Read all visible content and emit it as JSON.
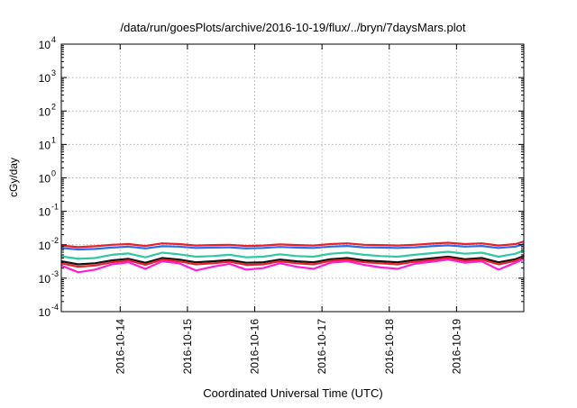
{
  "chart_data": {
    "type": "line",
    "title": "/data/run/goesPlots/archive/2016-10-19/flux/../bryn/7daysMars.plot",
    "xlabel": "Coordinated Universal Time (UTC)",
    "ylabel": "cGy/day",
    "yscale": "log",
    "grid": true,
    "legend": "none",
    "x_range": [
      "2016-10-13 03:00",
      "2016-10-20 00:00"
    ],
    "x_ticks": [
      "2016-10-14",
      "2016-10-15",
      "2016-10-16",
      "2016-10-17",
      "2016-10-18",
      "2016-10-19"
    ],
    "ylim": [
      0.0001,
      10000
    ],
    "y_ticks": [
      {
        "base": "10",
        "exp": "-4",
        "value": 0.0001
      },
      {
        "base": "10",
        "exp": "-3",
        "value": 0.001
      },
      {
        "base": "10",
        "exp": "-2",
        "value": 0.01
      },
      {
        "base": "10",
        "exp": "-1",
        "value": 0.1
      },
      {
        "base": "10",
        "exp": "0",
        "value": 1
      },
      {
        "base": "10",
        "exp": "1",
        "value": 10
      },
      {
        "base": "10",
        "exp": "2",
        "value": 100
      },
      {
        "base": "10",
        "exp": "3",
        "value": 1000
      },
      {
        "base": "10",
        "exp": "4",
        "value": 10000
      }
    ],
    "x": [
      "2016-10-13 03:00",
      "2016-10-13 09:00",
      "2016-10-13 15:00",
      "2016-10-13 21:00",
      "2016-10-14 03:00",
      "2016-10-14 09:00",
      "2016-10-14 15:00",
      "2016-10-14 21:00",
      "2016-10-15 03:00",
      "2016-10-15 09:00",
      "2016-10-15 15:00",
      "2016-10-15 21:00",
      "2016-10-16 03:00",
      "2016-10-16 09:00",
      "2016-10-16 15:00",
      "2016-10-16 21:00",
      "2016-10-17 03:00",
      "2016-10-17 09:00",
      "2016-10-17 15:00",
      "2016-10-17 21:00",
      "2016-10-18 03:00",
      "2016-10-18 09:00",
      "2016-10-18 15:00",
      "2016-10-18 21:00",
      "2016-10-19 03:00",
      "2016-10-19 09:00",
      "2016-10-19 15:00",
      "2016-10-19 21:00",
      "2016-10-20 00:00"
    ],
    "series": [
      {
        "color": "#e8202a",
        "values": [
          0.0095,
          0.0085,
          0.009,
          0.01,
          0.0105,
          0.0092,
          0.011,
          0.0105,
          0.0095,
          0.0098,
          0.01,
          0.0092,
          0.0095,
          0.0102,
          0.0098,
          0.0095,
          0.0105,
          0.011,
          0.01,
          0.0098,
          0.0095,
          0.01,
          0.0108,
          0.0115,
          0.0105,
          0.011,
          0.0095,
          0.0105,
          0.0125
        ]
      },
      {
        "color": "#2b6df0",
        "values": [
          0.008,
          0.0072,
          0.0075,
          0.0082,
          0.0088,
          0.0078,
          0.009,
          0.0088,
          0.008,
          0.0082,
          0.0084,
          0.0078,
          0.008,
          0.0086,
          0.0082,
          0.008,
          0.0088,
          0.0092,
          0.0084,
          0.0082,
          0.008,
          0.0084,
          0.009,
          0.0096,
          0.0088,
          0.0092,
          0.008,
          0.0088,
          0.0105
        ]
      },
      {
        "color": "#2fc8a0",
        "values": [
          0.0045,
          0.0038,
          0.004,
          0.005,
          0.0055,
          0.0042,
          0.0058,
          0.0052,
          0.0044,
          0.0046,
          0.005,
          0.0042,
          0.0044,
          0.0052,
          0.0046,
          0.0044,
          0.0054,
          0.0058,
          0.005,
          0.0046,
          0.0044,
          0.005,
          0.0056,
          0.0062,
          0.0054,
          0.0058,
          0.0044,
          0.0054,
          0.0068
        ]
      },
      {
        "color": "#111111",
        "values": [
          0.0032,
          0.0026,
          0.0028,
          0.0034,
          0.0038,
          0.0029,
          0.004,
          0.0036,
          0.003,
          0.0032,
          0.0035,
          0.0029,
          0.003,
          0.0036,
          0.0032,
          0.003,
          0.0037,
          0.004,
          0.0034,
          0.0032,
          0.003,
          0.0035,
          0.0039,
          0.0044,
          0.0037,
          0.004,
          0.003,
          0.0037,
          0.0046
        ]
      },
      {
        "color": "#e8202a",
        "values": [
          0.0028,
          0.0022,
          0.0024,
          0.003,
          0.0034,
          0.0025,
          0.0036,
          0.0032,
          0.0026,
          0.0028,
          0.0031,
          0.0025,
          0.0026,
          0.0032,
          0.0028,
          0.0026,
          0.0033,
          0.0036,
          0.003,
          0.0028,
          0.0026,
          0.0031,
          0.0035,
          0.004,
          0.0033,
          0.0036,
          0.0026,
          0.0033,
          0.0042
        ]
      },
      {
        "color": "#ff1fd6",
        "values": [
          0.0024,
          0.0015,
          0.0018,
          0.0026,
          0.003,
          0.0019,
          0.0032,
          0.0028,
          0.0017,
          0.0022,
          0.0027,
          0.0018,
          0.002,
          0.0028,
          0.0022,
          0.0019,
          0.0029,
          0.0032,
          0.0025,
          0.0021,
          0.0019,
          0.0027,
          0.0031,
          0.0036,
          0.0029,
          0.0032,
          0.0018,
          0.0029,
          0.0038
        ]
      }
    ]
  }
}
